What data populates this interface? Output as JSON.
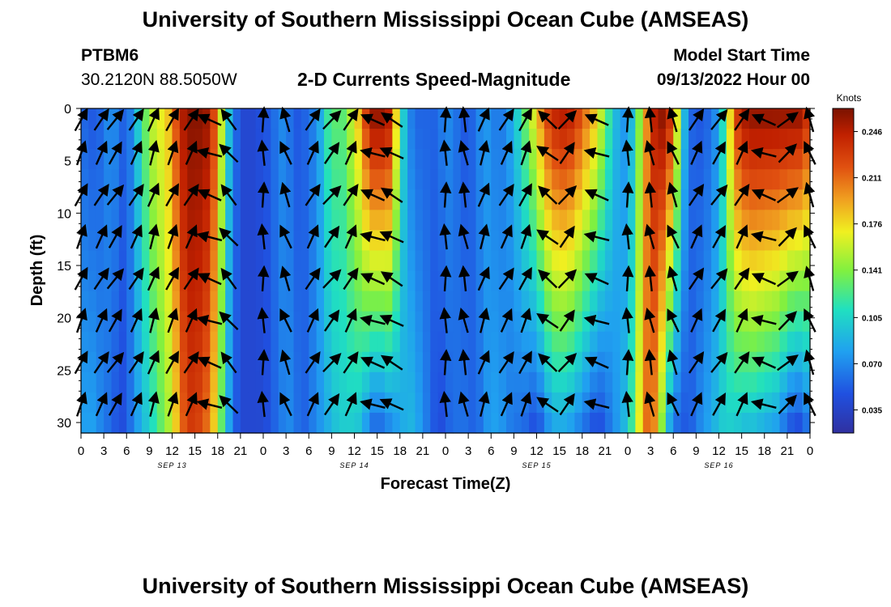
{
  "header": {
    "title": "University of Southern Mississippi Ocean Cube (AMSEAS)",
    "station": "PTBM6",
    "location": "30.2120N  88.5050W",
    "plot_title": "2-D Currents Speed-Magnitude",
    "model_start_label": "Model Start Time",
    "model_start_value": "09/13/2022 Hour 00",
    "footer_title": "University of Southern Mississippi Ocean Cube (AMSEAS)"
  },
  "chart_data": {
    "type": "heatmap",
    "title": "2-D Currents Speed-Magnitude",
    "xlabel": "Forecast Time(Z)",
    "ylabel": "Depth (ft)",
    "x_range_hours": [
      0,
      96
    ],
    "ylim": [
      0,
      31
    ],
    "y_inverted": true,
    "x_ticks": [
      "0",
      "3",
      "6",
      "9",
      "12",
      "15",
      "18",
      "21",
      "0",
      "3",
      "6",
      "9",
      "12",
      "15",
      "18",
      "21",
      "0",
      "3",
      "6",
      "9",
      "12",
      "15",
      "18",
      "21",
      "0",
      "3",
      "6",
      "9",
      "12",
      "15",
      "18",
      "21",
      "0"
    ],
    "y_ticks": [
      "0",
      "5",
      "10",
      "15",
      "20",
      "25",
      "30"
    ],
    "y_tick_values": [
      0,
      5,
      10,
      15,
      20,
      25,
      30
    ],
    "date_labels": [
      {
        "hour": 12,
        "text": "SEP 13"
      },
      {
        "hour": 36,
        "text": "SEP 14"
      },
      {
        "hour": 60,
        "text": "SEP 15"
      },
      {
        "hour": 84,
        "text": "SEP 16"
      }
    ],
    "colorbar": {
      "unit": "Knots",
      "range": [
        0.0175,
        0.2635
      ],
      "ticks": [
        "0.246",
        "0.211",
        "0.176",
        "0.141",
        "0.105",
        "0.070",
        "0.035"
      ],
      "tick_values": [
        0.246,
        0.211,
        0.176,
        0.141,
        0.105,
        0.07,
        0.035
      ]
    },
    "speed_profile": {
      "hours": [
        0,
        1,
        2,
        3,
        4,
        5,
        6,
        7,
        8,
        9,
        10,
        11,
        12,
        13,
        14,
        15,
        16,
        17,
        18,
        19,
        20,
        21,
        22,
        23,
        24,
        25,
        26,
        27,
        28,
        29,
        30,
        31,
        32,
        33,
        34,
        35,
        36,
        37,
        38,
        39,
        40,
        41,
        42,
        43,
        44,
        45,
        46,
        47,
        48,
        49,
        50,
        51,
        52,
        53,
        54,
        55,
        56,
        57,
        58,
        59,
        60,
        61,
        62,
        63,
        64,
        65,
        66,
        67,
        68,
        69,
        70,
        71,
        72,
        73,
        74,
        75,
        76,
        77,
        78,
        79,
        80,
        81,
        82,
        83,
        84,
        85,
        86,
        87,
        88,
        89,
        90,
        91,
        92,
        93,
        94,
        95,
        96
      ],
      "surface_knots": [
        0.06,
        0.05,
        0.05,
        0.06,
        0.08,
        0.06,
        0.05,
        0.08,
        0.12,
        0.15,
        0.17,
        0.17,
        0.2,
        0.24,
        0.26,
        0.26,
        0.26,
        0.25,
        0.2,
        0.12,
        0.07,
        0.04,
        0.04,
        0.04,
        0.05,
        0.05,
        0.07,
        0.07,
        0.05,
        0.05,
        0.06,
        0.07,
        0.1,
        0.14,
        0.12,
        0.14,
        0.17,
        0.2,
        0.26,
        0.26,
        0.26,
        0.24,
        0.12,
        0.08,
        0.05,
        0.06,
        0.05,
        0.06,
        0.07,
        0.07,
        0.05,
        0.05,
        0.06,
        0.08,
        0.07,
        0.06,
        0.07,
        0.09,
        0.12,
        0.15,
        0.18,
        0.22,
        0.24,
        0.25,
        0.25,
        0.24,
        0.22,
        0.2,
        0.18,
        0.14,
        0.1,
        0.08,
        0.07,
        0.11,
        0.17,
        0.23,
        0.26,
        0.26,
        0.22,
        0.12,
        0.06,
        0.05,
        0.05,
        0.06,
        0.08,
        0.14,
        0.22,
        0.25,
        0.26,
        0.26,
        0.26,
        0.26,
        0.26,
        0.26,
        0.26,
        0.26,
        0.22
      ],
      "bottom_knots": [
        0.08,
        0.08,
        0.08,
        0.06,
        0.06,
        0.04,
        0.05,
        0.07,
        0.09,
        0.1,
        0.12,
        0.14,
        0.16,
        0.2,
        0.23,
        0.23,
        0.22,
        0.2,
        0.16,
        0.1,
        0.06,
        0.04,
        0.04,
        0.04,
        0.04,
        0.05,
        0.06,
        0.07,
        0.07,
        0.05,
        0.06,
        0.07,
        0.08,
        0.09,
        0.1,
        0.1,
        0.1,
        0.09,
        0.06,
        0.05,
        0.06,
        0.07,
        0.08,
        0.09,
        0.09,
        0.07,
        0.06,
        0.04,
        0.05,
        0.06,
        0.06,
        0.06,
        0.05,
        0.07,
        0.08,
        0.08,
        0.07,
        0.06,
        0.06,
        0.05,
        0.04,
        0.06,
        0.08,
        0.08,
        0.08,
        0.07,
        0.06,
        0.05,
        0.04,
        0.05,
        0.07,
        0.08,
        0.1,
        0.14,
        0.2,
        0.22,
        0.18,
        0.1,
        0.06,
        0.05,
        0.05,
        0.06,
        0.08,
        0.08,
        0.1,
        0.1,
        0.1,
        0.09,
        0.09,
        0.09,
        0.08,
        0.08,
        0.07,
        0.05,
        0.04,
        0.04,
        0.07
      ]
    },
    "vector_columns": {
      "hours": [
        0,
        2.67,
        4.5,
        7.25,
        9.5,
        12,
        14.5,
        17,
        19.5,
        24,
        27,
        30.5,
        33,
        35.5,
        38.5,
        41,
        48,
        50.5,
        53,
        56,
        58.5,
        61.5,
        64,
        68,
        72,
        75,
        78,
        81,
        84,
        87,
        90,
        93,
        96
      ],
      "angles_deg": [
        65,
        60,
        55,
        60,
        70,
        65,
        60,
        160,
        130,
        90,
        110,
        60,
        50,
        60,
        160,
        150,
        90,
        100,
        70,
        60,
        65,
        140,
        50,
        160,
        90,
        100,
        110,
        60,
        55,
        60,
        160,
        40,
        110
      ]
    },
    "vector_depths_ft": [
      0.5,
      4,
      8,
      12,
      16,
      20,
      24,
      28
    ]
  }
}
